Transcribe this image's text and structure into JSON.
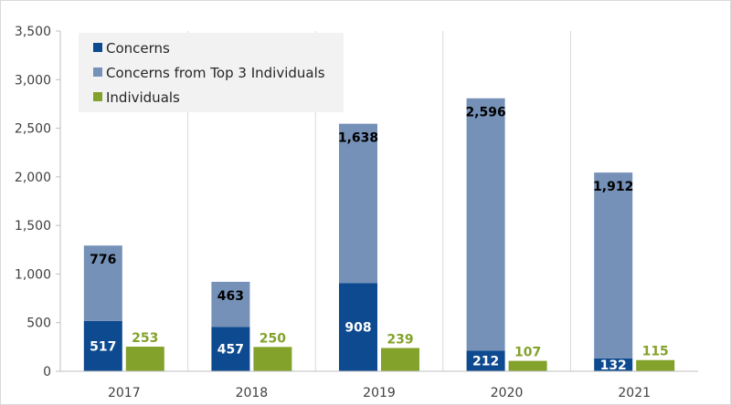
{
  "chart_data": {
    "type": "bar",
    "title": "",
    "xlabel": "",
    "ylabel": "",
    "ylim": [
      0,
      3500
    ],
    "yticks": [
      0,
      500,
      1000,
      1500,
      2000,
      2500,
      3000,
      3500
    ],
    "ytick_labels": [
      "0",
      "500",
      "1,000",
      "1,500",
      "2,000",
      "2,500",
      "3,000",
      "3,500"
    ],
    "grid": "vertical-between-categories",
    "legend_position": "top-left",
    "categories": [
      "2017",
      "2018",
      "2019",
      "2020",
      "2021"
    ],
    "series": [
      {
        "name": "Concerns",
        "stack": "concerns",
        "color": "#0e4a8f",
        "label_color": "#ffffff",
        "values": [
          517,
          457,
          908,
          212,
          132
        ],
        "labels": [
          "517",
          "457",
          "908",
          "212",
          "132"
        ]
      },
      {
        "name": "Concerns from Top 3 Individuals",
        "stack": "concerns",
        "color": "#7591b8",
        "label_color": "#000000",
        "values": [
          776,
          463,
          1638,
          2596,
          1912
        ],
        "labels": [
          "776",
          "463",
          "1,638",
          "2,596",
          "1,912"
        ]
      },
      {
        "name": "Individuals",
        "stack": "individuals",
        "color": "#83a22c",
        "label_color": "#83a22c",
        "values": [
          253,
          250,
          239,
          107,
          115
        ],
        "labels": [
          "253",
          "250",
          "239",
          "107",
          "115"
        ]
      }
    ]
  }
}
